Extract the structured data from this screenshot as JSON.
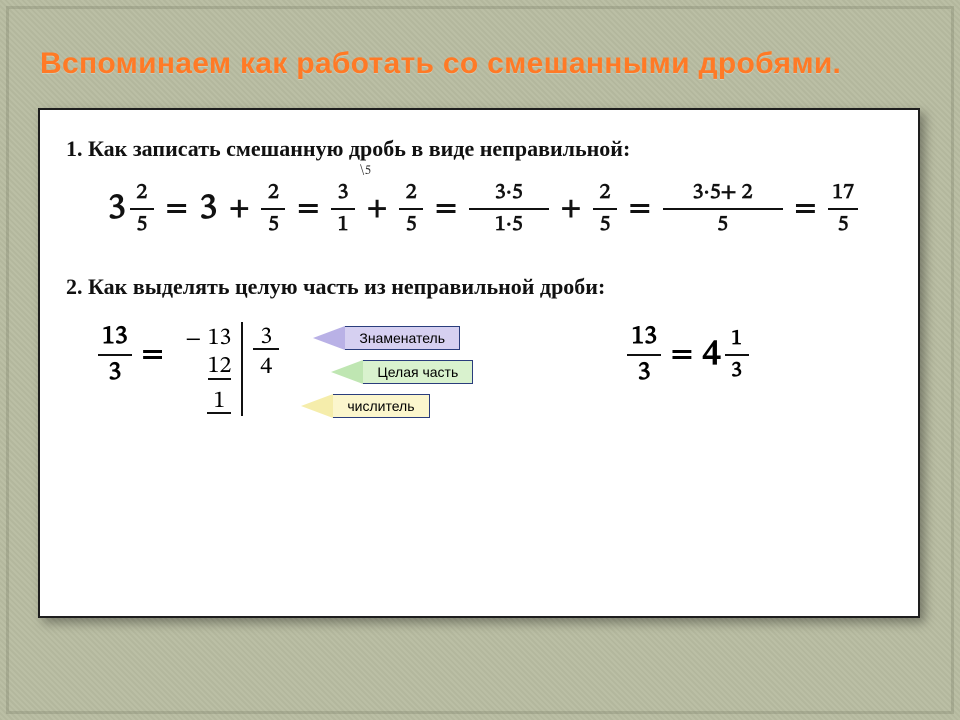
{
  "title": "Вспоминаем как работать со смешанными дробями.",
  "item1": "1.  Как записать смешанную дробь в виде неправильной:",
  "item2": "2.  Как выделять целую часть из неправильной дроби:",
  "eq": "=",
  "plus": "+",
  "mixed": {
    "whole": "3",
    "num": "2",
    "den": "5"
  },
  "step_whole": "3",
  "step_frac": {
    "num": "2",
    "den": "5"
  },
  "three_over_one": {
    "num": "3",
    "den": "1"
  },
  "mult_annot": "\\5",
  "frac35_15": {
    "num": "3·5",
    "den": "1·5"
  },
  "frac_2_5_b": {
    "num": "2",
    "den": "5"
  },
  "frac_sum": {
    "num": "3·5+ 2",
    "den": "5"
  },
  "result": {
    "num": "17",
    "den": "5"
  },
  "lhs_frac": {
    "num": "13",
    "den": "3"
  },
  "ld": {
    "dividend": "13",
    "sub": "12",
    "remainder": "1",
    "divisor": "3",
    "quotient": "4",
    "minus": "−"
  },
  "callouts": {
    "a": "Знаменатель",
    "b": "Целая часть",
    "c": "числитель"
  },
  "rhs": {
    "num": "13",
    "den": "3",
    "whole": "4",
    "rnum": "1",
    "rden": "3"
  },
  "colors": {
    "accent": "#ff7a26",
    "bg": "#b9bda2",
    "panel_border": "#1e1e1e",
    "call1": "#d6d0f1",
    "call2": "#d9f2ce",
    "call3": "#fbf6cd"
  }
}
